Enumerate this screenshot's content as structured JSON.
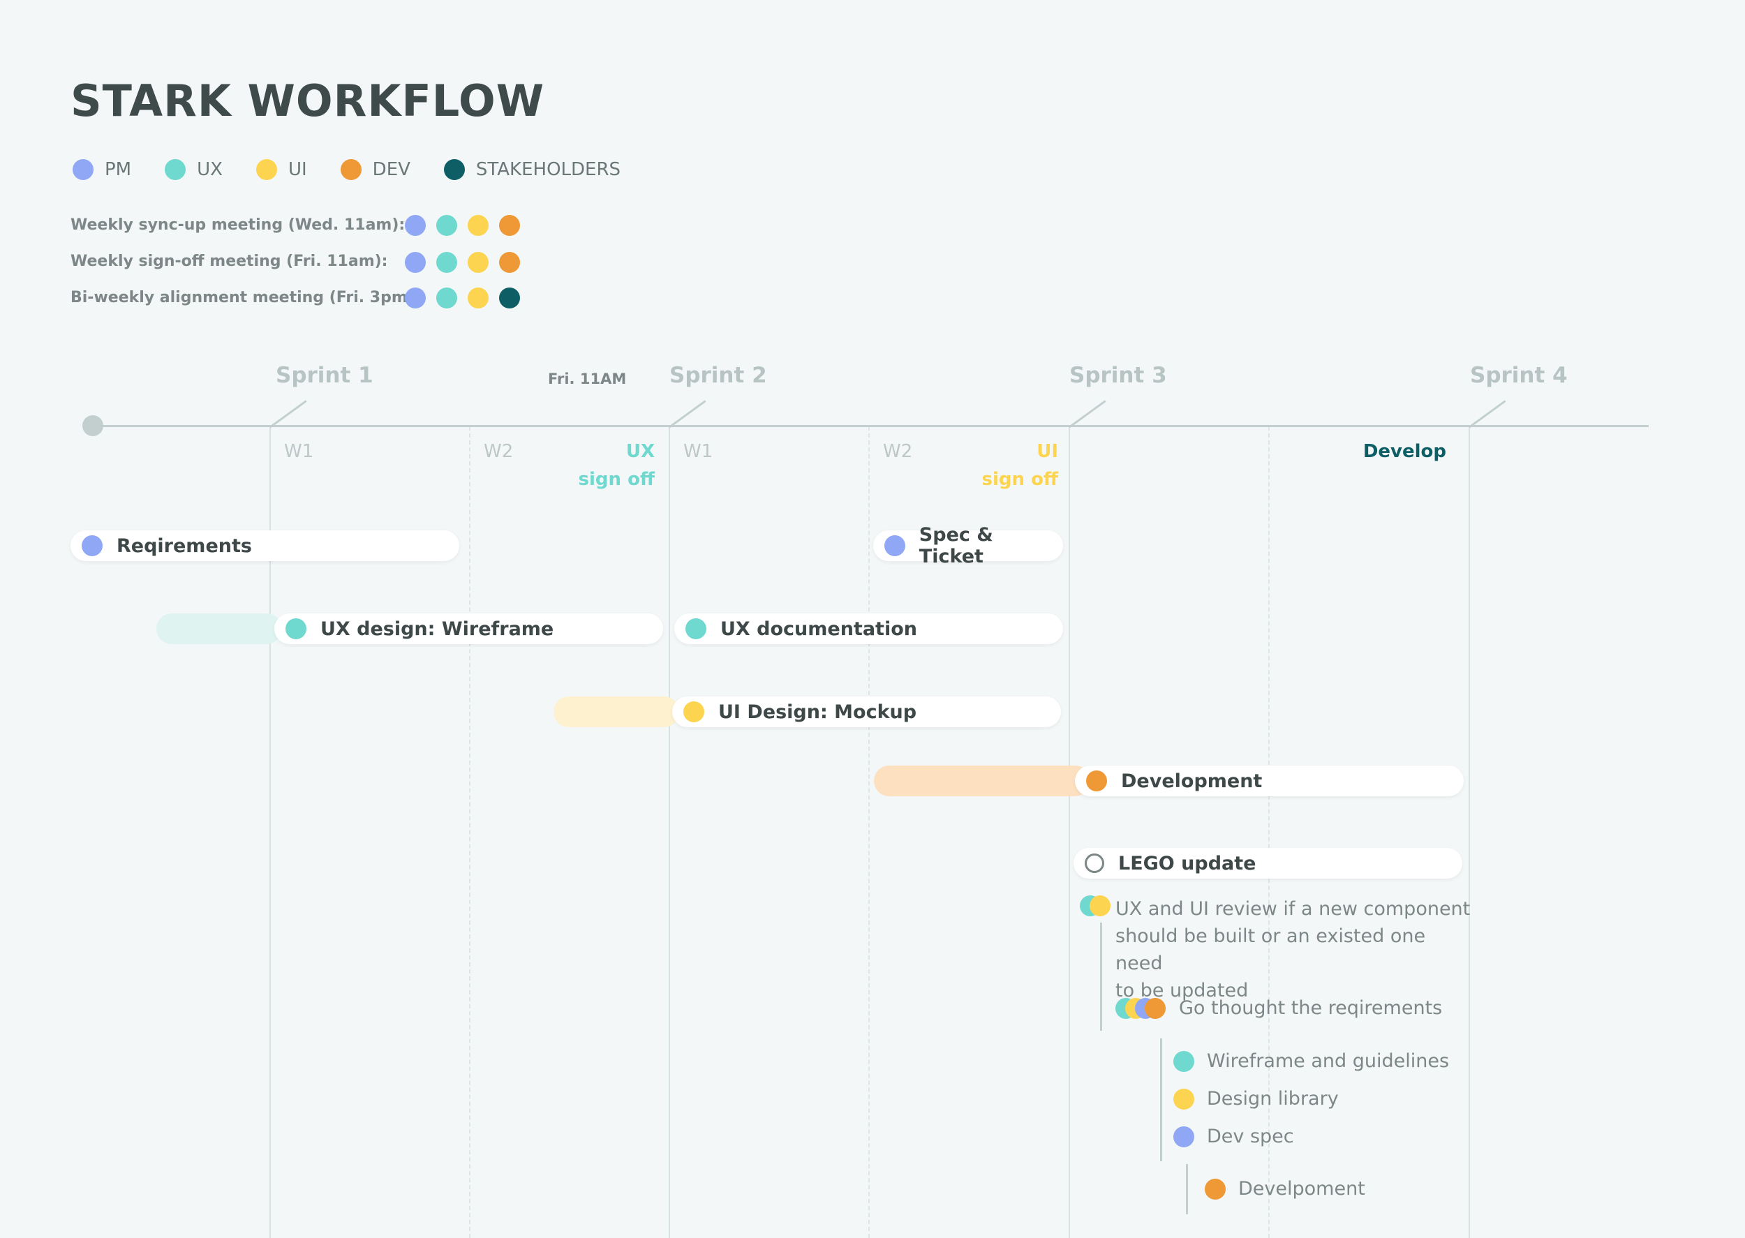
{
  "title": "STARK WORKFLOW",
  "colors": {
    "pm": "#8fa7f5",
    "ux": "#6fd8cf",
    "ui": "#fdd44f",
    "dev": "#ef9836",
    "stakeholders": "#0e5e66",
    "ux_text": "#6fd8cf",
    "ui_text": "#fdd44f",
    "develop_text": "#0e5e66"
  },
  "legend": [
    {
      "label": "PM",
      "icon": "pm-dot-icon"
    },
    {
      "label": "UX",
      "icon": "ux-dot-icon"
    },
    {
      "label": "UI",
      "icon": "ui-dot-icon"
    },
    {
      "label": "DEV",
      "icon": "dev-dot-icon"
    },
    {
      "label": "STAKEHOLDERS",
      "icon": "stakeholders-dot-icon"
    }
  ],
  "meetings": [
    {
      "label": "Weekly sync-up meeting (Wed. 11am):",
      "attendees": [
        "pm",
        "ux",
        "ui",
        "dev"
      ]
    },
    {
      "label": "Weekly sign-off meeting (Fri. 11am):",
      "attendees": [
        "pm",
        "ux",
        "ui",
        "dev"
      ]
    },
    {
      "label": "Bi-weekly alignment meeting (Fri. 3pm):",
      "attendees": [
        "pm",
        "ux",
        "ui",
        "stakeholders"
      ]
    }
  ],
  "sprints": [
    "Sprint 1",
    "Sprint 2",
    "Sprint 3",
    "Sprint 4"
  ],
  "fri_label": "Fri. 11AM",
  "weeks": [
    "W1",
    "W2",
    "W1",
    "W2"
  ],
  "milestones": {
    "ux_line1": "UX",
    "ux_line2": "sign off",
    "ui_line1": "UI",
    "ui_line2": "sign off",
    "develop": "Develop"
  },
  "tasks": {
    "requirements": "Reqirements",
    "spec_ticket": "Spec & Ticket",
    "ux_wireframe": "UX design: Wireframe",
    "ux_documentation": "UX documentation",
    "ui_mockup": "UI Design: Mockup",
    "development": "Development",
    "lego_update": "LEGO update"
  },
  "lego_steps": {
    "review_line1": "UX and UI  review if a new component",
    "review_line2": "should be built or an existed one need",
    "review_line3": "to be updated",
    "requirements": "Go thought the reqirements",
    "wireframe": "Wireframe and guidelines",
    "design_library": "Design library",
    "dev_spec": "Dev spec",
    "development": "Develpoment"
  }
}
